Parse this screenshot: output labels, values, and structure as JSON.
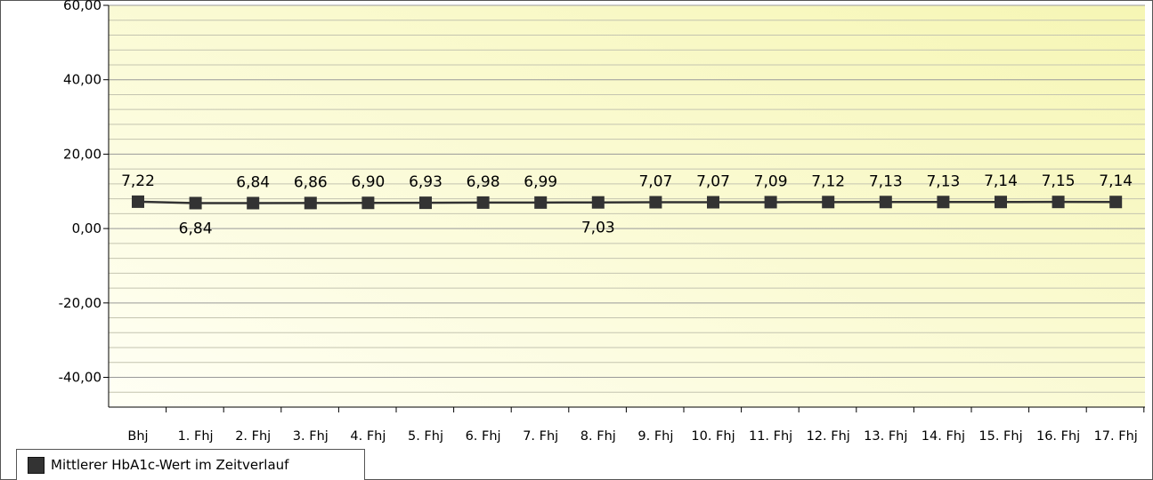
{
  "chart_data": {
    "type": "line",
    "categories": [
      "Bhj",
      "1. Fhj",
      "2. Fhj",
      "3. Fhj",
      "4. Fhj",
      "5. Fhj",
      "6. Fhj",
      "7. Fhj",
      "8. Fhj",
      "9. Fhj",
      "10. Fhj",
      "11. Fhj",
      "12. Fhj",
      "13. Fhj",
      "14. Fhj",
      "15. Fhj",
      "16. Fhj",
      "17. Fhj"
    ],
    "series": [
      {
        "name": "Mittlerer HbA1c-Wert im Zeitverlauf",
        "values": [
          7.22,
          6.84,
          6.84,
          6.86,
          6.9,
          6.93,
          6.98,
          6.99,
          7.03,
          7.07,
          7.07,
          7.09,
          7.12,
          7.13,
          7.13,
          7.14,
          7.15,
          7.14
        ],
        "data_labels": [
          "7,22",
          "6,84",
          "6,84",
          "6,86",
          "6,90",
          "6,93",
          "6,98",
          "6,99",
          "7,03",
          "7,07",
          "7,07",
          "7,09",
          "7,12",
          "7,13",
          "7,13",
          "7,14",
          "7,15",
          "7,14"
        ],
        "color": "#333333"
      }
    ],
    "y_ticks": [
      60,
      40,
      20,
      0,
      -20,
      -40
    ],
    "y_tick_labels": [
      "60,00",
      "40,00",
      "20,00",
      "0,00",
      "-20,00",
      "-40,00"
    ],
    "ylim": [
      -48,
      60
    ],
    "grid": true,
    "legend_placement": "bottom-left",
    "colors": {
      "plot_bg_light": "#fffff2",
      "plot_bg_dark": "#f6f6b0",
      "grid": "#aaaaaa",
      "line": "#333333"
    }
  }
}
